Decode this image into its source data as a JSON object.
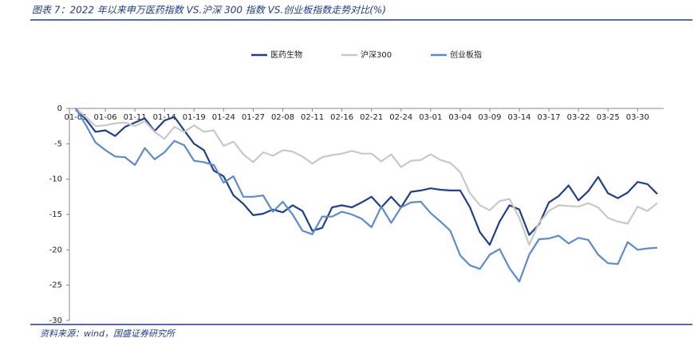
{
  "chart_data": {
    "type": "line",
    "title": "图表 7：2022 年以来申万医药指数 VS.沪深 300 指数 VS.创业板指数走势对比(%)",
    "source": "资料来源：wind，国盛证券研究所",
    "categories": [
      "01-01",
      null,
      null,
      "01-06",
      null,
      null,
      "01-11",
      null,
      null,
      "01-14",
      null,
      null,
      "01-19",
      null,
      null,
      "01-24",
      null,
      null,
      "01-27",
      null,
      null,
      "02-08",
      null,
      null,
      "02-11",
      null,
      null,
      "02-16",
      null,
      null,
      "02-21",
      null,
      null,
      "02-24",
      null,
      null,
      "03-01",
      null,
      null,
      "03-04",
      null,
      null,
      "03-09",
      null,
      null,
      "03-14",
      null,
      null,
      "03-17",
      null,
      null,
      "03-22",
      null,
      null,
      "03-25",
      null,
      null,
      "03-30",
      null,
      null
    ],
    "series": [
      {
        "name": "医药生物",
        "color": "#1f3f8f",
        "values": [
          0,
          -1.5,
          -3.3,
          -3.1,
          -3.9,
          -2.6,
          -2.0,
          -1.4,
          -3.2,
          -1.7,
          -1.2,
          -3.1,
          -5.0,
          -5.9,
          -8.8,
          -9.6,
          -12.3,
          -13.5,
          -15.1,
          -14.9,
          -14.3,
          -14.7,
          -13.7,
          -14.5,
          -17.3,
          -16.9,
          -14.0,
          -13.7,
          -14.0,
          -13.3,
          -12.5,
          -14.0,
          -12.5,
          -14.0,
          -11.8,
          -11.6,
          -11.3,
          -11.5,
          -11.6,
          -11.6,
          -14.0,
          -17.5,
          -19.3,
          -16.0,
          -13.7,
          -14.3,
          -17.9,
          -16.4,
          -13.3,
          -12.4,
          -10.9,
          -13.0,
          -11.7,
          -9.7,
          -12.0,
          -12.7,
          -11.9,
          -10.4,
          -10.7,
          -12.1
        ]
      },
      {
        "name": "沪深300",
        "color": "#c8c8c8",
        "values": [
          0,
          -1.2,
          -2.5,
          -2.4,
          -2.1,
          -2.0,
          -2.5,
          -1.8,
          -3.3,
          -4.3,
          -2.6,
          -3.3,
          -2.4,
          -3.3,
          -3.1,
          -5.3,
          -4.7,
          -6.5,
          -7.6,
          -6.2,
          -6.7,
          -5.9,
          -6.1,
          -6.8,
          -7.8,
          -6.9,
          -6.6,
          -6.4,
          -6.0,
          -6.4,
          -6.4,
          -7.5,
          -6.5,
          -8.3,
          -7.4,
          -7.3,
          -6.5,
          -7.3,
          -7.7,
          -9.0,
          -12.0,
          -13.7,
          -14.4,
          -13.1,
          -12.8,
          -15.5,
          -19.3,
          -16.2,
          -14.5,
          -13.7,
          -13.8,
          -13.9,
          -13.4,
          -14.0,
          -15.5,
          -16.0,
          -16.3,
          -13.9,
          -14.5,
          -13.4
        ]
      },
      {
        "name": "创业板指",
        "color": "#5b8bd0",
        "values": [
          0,
          -2.3,
          -4.8,
          -5.9,
          -6.8,
          -6.9,
          -8.0,
          -5.6,
          -7.2,
          -6.2,
          -4.6,
          -5.2,
          -7.4,
          -7.6,
          -8.0,
          -10.5,
          -9.6,
          -12.5,
          -12.5,
          -12.3,
          -14.6,
          -13.2,
          -15.0,
          -17.3,
          -17.8,
          -15.3,
          -15.3,
          -14.6,
          -15.0,
          -15.6,
          -16.8,
          -13.9,
          -16.2,
          -14.0,
          -13.3,
          -13.2,
          -14.8,
          -16.0,
          -17.3,
          -20.8,
          -22.2,
          -22.7,
          -20.7,
          -19.9,
          -22.6,
          -24.5,
          -20.7,
          -18.5,
          -18.4,
          -18.0,
          -19.1,
          -18.3,
          -18.6,
          -20.7,
          -21.9,
          -22.0,
          -18.9,
          -20.0,
          -19.8,
          -19.7
        ]
      }
    ],
    "ylim": [
      -30,
      0
    ],
    "yticks": [
      0,
      -5,
      -10,
      -15,
      -20,
      -25,
      -30
    ],
    "legend": "top"
  }
}
